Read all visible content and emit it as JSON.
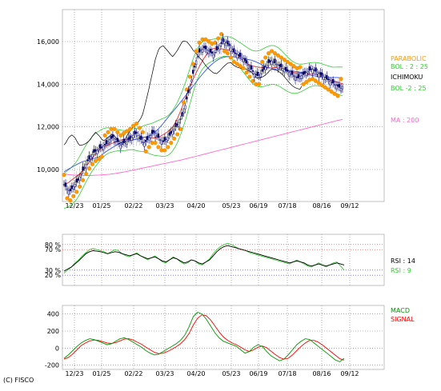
{
  "copyright": "(C) FISCO",
  "chart_data": [
    {
      "panel": "price",
      "type": "line",
      "ylim": [
        8500,
        17500
      ],
      "y_ticks": [
        10000,
        12000,
        14000,
        16000
      ],
      "y_tick_labels": [
        "10,000",
        "12,000",
        "14,000",
        "16,000"
      ],
      "x_tick_labels": [
        "12/23",
        "01/25",
        "02/22",
        "03/23",
        "04/20",
        "05/23",
        "06/19",
        "07/18",
        "08/16",
        "09/12"
      ],
      "grid": true,
      "n_points": 180,
      "candles_close": [
        9300,
        9200,
        9100,
        9000,
        9000,
        9100,
        9200,
        9300,
        9400,
        9500,
        9650,
        9800,
        9950,
        10100,
        10250,
        10400,
        10500,
        10600,
        10700,
        10800,
        10850,
        10900,
        10950,
        11000,
        11050,
        11100,
        11150,
        11200,
        11300,
        11400,
        11450,
        11500,
        11450,
        11400,
        11300,
        11200,
        11150,
        11200,
        11250,
        11300,
        11350,
        11400,
        11450,
        11500,
        11600,
        11650,
        11700,
        11600,
        11500,
        11400,
        11300,
        11250,
        11300,
        11400,
        11500,
        11600,
        11700,
        11750,
        11700,
        11600,
        11500,
        11400,
        11350,
        11300,
        11350,
        11400,
        11500,
        11600,
        11700,
        11800,
        11900,
        12000,
        12100,
        12200,
        12350,
        12500,
        12700,
        13000,
        13300,
        13600,
        13900,
        14200,
        14500,
        14800,
        15100,
        15300,
        15500,
        15600,
        15650,
        15700,
        15650,
        15600,
        15550,
        15500,
        15450,
        15400,
        15500,
        15600,
        15700,
        15800,
        15900,
        16000,
        16000,
        15950,
        15900,
        15800,
        15700,
        15600,
        15500,
        15450,
        15400,
        15350,
        15300,
        15250,
        15200,
        15100,
        15000,
        14900,
        14800,
        14700,
        14600,
        14500,
        14450,
        14400,
        14450,
        14500,
        14600,
        14700,
        14800,
        14900,
        15000,
        15050,
        15100,
        15050,
        15000,
        14950,
        14900,
        14850,
        14800,
        14750,
        14700,
        14650,
        14600,
        14550,
        14500,
        14450,
        14400,
        14350,
        14300,
        14300,
        14350,
        14400,
        14450,
        14500,
        14550,
        14600,
        14650,
        14700,
        14700,
        14650,
        14600,
        14550,
        14500,
        14450,
        14400,
        14350,
        14300,
        14250,
        14200,
        14150,
        14100,
        14050,
        14000,
        13950,
        13900,
        13850,
        13800,
        13900
      ],
      "ma200": [
        9800,
        9760,
        9740,
        9730,
        9720,
        9720,
        9730,
        9740,
        9760,
        9780,
        9810,
        9850,
        9890,
        9940,
        9990,
        10040,
        10090,
        10140,
        10190,
        10240,
        10290,
        10340,
        10390,
        10440,
        10500,
        10560,
        10620,
        10680,
        10740,
        10800,
        10860,
        10920,
        10980,
        11040,
        11100,
        11160,
        11220,
        11280,
        11340,
        11400,
        11460,
        11520,
        11580,
        11640,
        11700,
        11760,
        11820,
        11880,
        11940,
        12000,
        12060,
        12120,
        12180,
        12240,
        12300,
        12350
      ],
      "series_labels": [
        {
          "text": "MA : 200",
          "color": "#ff66cc"
        },
        {
          "text": "BOL : 2 : 25",
          "color": "#33cc33"
        },
        {
          "text": "BOL -2 : 25",
          "color": "#33cc33"
        },
        {
          "text": "PARABOLIC",
          "color": "#ff9900"
        },
        {
          "text": "ICHIMOKU",
          "color": "#000000"
        }
      ]
    },
    {
      "panel": "rsi",
      "type": "line",
      "ylim": [
        0,
        100
      ],
      "levels": [
        20,
        30,
        70,
        80
      ],
      "level_labels": [
        "20 %",
        "30 %",
        "70 %",
        "80 %"
      ],
      "series": [
        {
          "name": "RSI : 14",
          "color": "#000000"
        },
        {
          "name": "RSI : 9",
          "color": "#33cc33"
        }
      ],
      "rsi14": [
        28,
        32,
        36,
        42,
        48,
        55,
        62,
        66,
        68,
        67,
        66,
        64,
        62,
        64,
        66,
        65,
        62,
        60,
        58,
        60,
        62,
        58,
        55,
        52,
        54,
        56,
        52,
        48,
        46,
        50,
        54,
        52,
        48,
        44,
        46,
        50,
        48,
        44,
        42,
        46,
        50,
        58,
        66,
        72,
        76,
        78,
        76,
        74,
        72,
        70,
        68,
        66,
        64,
        62,
        60,
        58,
        56,
        54,
        52,
        50,
        48,
        46,
        44,
        46,
        48,
        46,
        44,
        40,
        38,
        40,
        42,
        40,
        38,
        40,
        42,
        44,
        42,
        40
      ],
      "rsi9": [
        24,
        30,
        36,
        44,
        50,
        58,
        64,
        70,
        72,
        70,
        68,
        66,
        62,
        66,
        70,
        68,
        62,
        58,
        56,
        60,
        64,
        58,
        54,
        50,
        54,
        58,
        52,
        46,
        44,
        50,
        56,
        52,
        46,
        42,
        44,
        50,
        48,
        42,
        40,
        46,
        52,
        62,
        70,
        76,
        80,
        82,
        80,
        76,
        72,
        70,
        68,
        64,
        62,
        60,
        58,
        56,
        54,
        52,
        50,
        48,
        46,
        44,
        42,
        46,
        50,
        46,
        42,
        38,
        36,
        40,
        44,
        40,
        36,
        40,
        44,
        46,
        38,
        30
      ]
    },
    {
      "panel": "macd",
      "type": "line",
      "ylim": [
        -250,
        500
      ],
      "y_ticks": [
        -200,
        0,
        200,
        400
      ],
      "y_tick_labels": [
        "-200",
        "0",
        "200",
        "400"
      ],
      "x_tick_labels": [
        "12/23",
        "01/25",
        "02/22",
        "03/23",
        "04/20",
        "05/23",
        "06/19",
        "07/18",
        "08/16",
        "09/12"
      ],
      "series": [
        {
          "name": "MACD",
          "color": "#009900"
        },
        {
          "name": "SIGNAL",
          "color": "#ff0000"
        }
      ],
      "macd": [
        -120,
        -80,
        -30,
        20,
        60,
        90,
        110,
        100,
        80,
        60,
        40,
        50,
        80,
        110,
        120,
        100,
        70,
        40,
        10,
        -30,
        -60,
        -80,
        -70,
        -40,
        -10,
        20,
        50,
        90,
        150,
        250,
        370,
        420,
        400,
        340,
        260,
        180,
        120,
        80,
        60,
        40,
        20,
        -20,
        -60,
        -40,
        10,
        40,
        20,
        -40,
        -90,
        -120,
        -150,
        -130,
        -80,
        -20,
        40,
        80,
        110,
        100,
        60,
        20,
        -20,
        -60,
        -100,
        -140,
        -160,
        -120
      ],
      "signal": [
        -130,
        -110,
        -70,
        -20,
        30,
        60,
        85,
        95,
        90,
        75,
        60,
        55,
        65,
        85,
        105,
        110,
        95,
        70,
        45,
        10,
        -20,
        -50,
        -65,
        -60,
        -40,
        -15,
        15,
        50,
        100,
        170,
        270,
        350,
        390,
        380,
        330,
        260,
        190,
        130,
        90,
        60,
        40,
        10,
        -20,
        -40,
        -20,
        10,
        25,
        5,
        -35,
        -75,
        -110,
        -130,
        -120,
        -80,
        -30,
        20,
        60,
        90,
        90,
        70,
        35,
        -5,
        -45,
        -85,
        -125,
        -140
      ]
    }
  ]
}
